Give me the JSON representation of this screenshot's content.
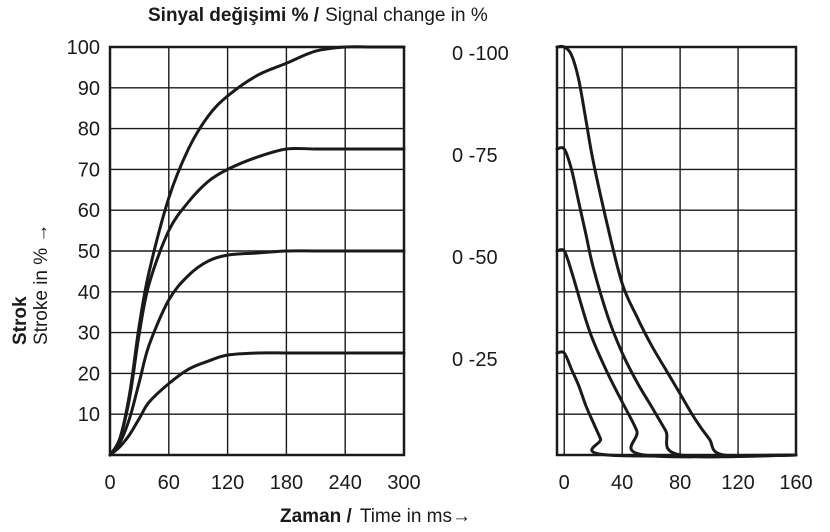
{
  "title": {
    "bold": "Sinyal değişimi % /",
    "normal": "Signal change in %"
  },
  "y_label": {
    "bold": "Strok",
    "normal": "Stroke in % →"
  },
  "x_label": {
    "bold": "Zaman /",
    "normal": "Time in ms→"
  },
  "signal_labels": [
    "0 -100",
    "0 -75",
    "0 -50",
    "0 -25"
  ],
  "chart_data": [
    {
      "type": "line",
      "panel": "rise",
      "x_ticks": [
        0,
        60,
        120,
        180,
        240,
        300
      ],
      "y_ticks": [
        10,
        20,
        30,
        40,
        50,
        60,
        70,
        80,
        90,
        100
      ],
      "xlim": [
        0,
        300
      ],
      "ylim": [
        0,
        100
      ],
      "grid": true,
      "series": [
        {
          "name": "0 -100",
          "x": [
            0,
            10,
            20,
            30,
            40,
            60,
            80,
            100,
            120,
            150,
            180,
            210,
            240,
            270,
            300
          ],
          "y": [
            0,
            4,
            15,
            32,
            45,
            63,
            75,
            83,
            88,
            93,
            96,
            99,
            100,
            100,
            100
          ]
        },
        {
          "name": "0 -75",
          "x": [
            0,
            10,
            20,
            30,
            40,
            60,
            80,
            100,
            120,
            150,
            180,
            210,
            240,
            270,
            300
          ],
          "y": [
            0,
            4,
            14,
            30,
            42,
            55,
            62,
            67,
            70,
            73,
            75,
            75,
            75,
            75,
            75
          ]
        },
        {
          "name": "0 -50",
          "x": [
            0,
            10,
            20,
            30,
            40,
            60,
            80,
            100,
            120,
            150,
            180,
            210,
            240,
            270,
            300
          ],
          "y": [
            0,
            3,
            9,
            18,
            27,
            38,
            44,
            47.5,
            49,
            49.5,
            50,
            50,
            50,
            50,
            50
          ]
        },
        {
          "name": "0 -25",
          "x": [
            0,
            10,
            20,
            30,
            40,
            60,
            80,
            100,
            120,
            150,
            180,
            210,
            240,
            270,
            300
          ],
          "y": [
            0,
            2,
            5,
            9,
            13,
            17.5,
            21,
            23,
            24.5,
            25,
            25,
            25,
            25,
            25,
            25
          ]
        }
      ]
    },
    {
      "type": "line",
      "panel": "fall",
      "x_ticks": [
        0,
        40,
        80,
        120,
        160
      ],
      "xlim": [
        -5,
        160
      ],
      "ylim": [
        0,
        100
      ],
      "grid": true,
      "series": [
        {
          "name": "0 -100",
          "x": [
            -5,
            0,
            5,
            10,
            15,
            20,
            30,
            40,
            50,
            60,
            70,
            80,
            90,
            100,
            110,
            160
          ],
          "y": [
            100,
            100,
            98,
            92,
            82,
            72,
            56,
            42,
            34,
            27,
            21,
            15,
            9,
            4,
            0,
            0
          ]
        },
        {
          "name": "0 -75",
          "x": [
            -5,
            0,
            5,
            10,
            15,
            20,
            30,
            40,
            50,
            60,
            70,
            80,
            160
          ],
          "y": [
            75,
            75,
            70,
            62,
            54,
            46,
            34,
            25,
            18,
            12,
            6,
            0,
            0
          ]
        },
        {
          "name": "0 -50",
          "x": [
            -5,
            0,
            5,
            10,
            15,
            20,
            30,
            40,
            50,
            55,
            160
          ],
          "y": [
            50,
            50,
            45,
            39,
            33,
            28,
            20,
            13,
            6,
            0,
            0
          ]
        },
        {
          "name": "0 -25",
          "x": [
            -5,
            0,
            5,
            10,
            15,
            20,
            25,
            30,
            160
          ],
          "y": [
            25,
            25,
            21,
            17,
            12,
            8,
            4,
            0,
            0
          ]
        }
      ]
    }
  ]
}
